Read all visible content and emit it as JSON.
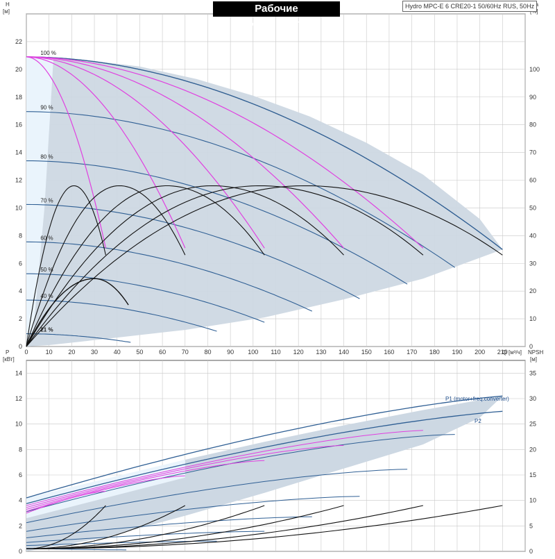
{
  "header": {
    "title": "Рабочие характеристики",
    "subtitle": "Hydro MPC-E 6 CRE20-1 50/60Hz RUS, 50Hz"
  },
  "colors": {
    "envelope": "#cdd8e3",
    "envelope_edge": "#3a5f8a",
    "single_pump_area": "#eaf4fc",
    "speed_curve": "#2f5f94",
    "efficiency_curve": "#111111",
    "duty_curve": "#e040e0",
    "grid": "#c8c8c8"
  },
  "chart_data": [
    {
      "type": "line",
      "name": "head",
      "title": "Рабочие характеристики",
      "xlabel": "Q",
      "xunit": "[м³/ч]",
      "ylabel": "H",
      "yunit": "[м]",
      "y2label": "eta",
      "y2unit": "[%]",
      "xlim": [
        0,
        220
      ],
      "ylim": [
        0,
        24
      ],
      "y2lim": [
        0,
        120
      ],
      "xticks": [
        0,
        10,
        20,
        30,
        40,
        50,
        60,
        70,
        80,
        90,
        100,
        110,
        120,
        130,
        140,
        150,
        160,
        170,
        180,
        190,
        200,
        210
      ],
      "yticks": [
        0,
        2,
        4,
        6,
        8,
        10,
        12,
        14,
        16,
        18,
        20,
        22
      ],
      "y2ticks": [
        0,
        10,
        20,
        30,
        40,
        50,
        60,
        70,
        80,
        90,
        100
      ],
      "grid": true,
      "envelope": {
        "x": [
          0,
          10,
          25,
          50,
          75,
          100,
          125,
          150,
          175,
          200,
          210,
          175,
          140,
          105,
          70,
          35,
          10,
          0
        ],
        "y": [
          20.9,
          20.88,
          20.7,
          20.2,
          19.3,
          18.1,
          16.6,
          14.7,
          12.4,
          9.2,
          7.0,
          4.9,
          3.4,
          2.1,
          1.2,
          0.55,
          0.1,
          0
        ]
      },
      "speed_curves": [
        {
          "label": "100 %",
          "shutoff": 20.9,
          "qmax": 210,
          "hend": 7.0
        },
        {
          "label": "90 %",
          "shutoff": 16.95,
          "qmax": 189,
          "hend": 5.7
        },
        {
          "label": "80 %",
          "shutoff": 13.4,
          "qmax": 168,
          "hend": 4.5
        },
        {
          "label": "70 %",
          "shutoff": 10.25,
          "qmax": 147,
          "hend": 3.45
        },
        {
          "label": "60 %",
          "shutoff": 7.55,
          "qmax": 126,
          "hend": 2.55
        },
        {
          "label": "50 %",
          "shutoff": 5.25,
          "qmax": 105,
          "hend": 1.75
        },
        {
          "label": "40 %",
          "shutoff": 3.35,
          "qmax": 84,
          "hend": 1.1
        },
        {
          "label": "21 %",
          "shutoff": 0.92,
          "qmax": 46,
          "hend": 0.3
        }
      ],
      "duty_curves": [
        {
          "x": [
            0,
            35
          ],
          "y": [
            20.9,
            7.1
          ]
        },
        {
          "x": [
            0,
            70
          ],
          "y": [
            20.9,
            7.1
          ]
        },
        {
          "x": [
            0,
            105
          ],
          "y": [
            20.9,
            7.1
          ]
        },
        {
          "x": [
            0,
            140
          ],
          "y": [
            20.9,
            7.1
          ]
        },
        {
          "x": [
            0,
            175
          ],
          "y": [
            20.9,
            7.1
          ]
        }
      ],
      "efficiency_curves": [
        {
          "peak_x": 30,
          "peak": 24.5,
          "qmax": 45,
          "end": 15
        },
        {
          "peak_x": 21,
          "peak": 58,
          "qmax": 35,
          "end": 33
        },
        {
          "peak_x": 41,
          "peak": 58,
          "qmax": 70,
          "end": 33
        },
        {
          "peak_x": 62,
          "peak": 58,
          "qmax": 105,
          "end": 33
        },
        {
          "peak_x": 82,
          "peak": 58,
          "qmax": 140,
          "end": 33
        },
        {
          "peak_x": 103,
          "peak": 58,
          "qmax": 175,
          "end": 33
        },
        {
          "peak_x": 123,
          "peak": 58,
          "qmax": 210,
          "end": 33
        }
      ]
    },
    {
      "type": "line",
      "name": "power",
      "ylabel": "P",
      "yunit": "[кВт]",
      "y2label": "NPSH",
      "y2unit": "[м]",
      "xlim": [
        0,
        220
      ],
      "ylim": [
        0,
        15
      ],
      "y2lim": [
        0,
        37.5
      ],
      "yticks": [
        0,
        2,
        4,
        6,
        8,
        10,
        12,
        14
      ],
      "y2ticks": [
        0,
        5,
        10,
        15,
        20,
        25,
        30,
        35
      ],
      "grid": true,
      "series": [
        {
          "name": "P1 (motor+freq.converter)",
          "x": [
            0,
            210
          ],
          "start": 4.2,
          "end": 12.2
        },
        {
          "name": "P2",
          "x": [
            0,
            210
          ],
          "start": 3.75,
          "end": 11.0
        }
      ],
      "envelope": {
        "x": [
          0,
          35,
          70,
          105,
          140,
          175,
          210,
          200,
          175,
          140,
          105,
          70,
          35,
          0
        ],
        "y": [
          4.2,
          5.6,
          7.2,
          8.6,
          9.9,
          11.1,
          12.2,
          10.5,
          8.4,
          6.5,
          4.6,
          2.8,
          1.1,
          0
        ]
      },
      "npsh_curves": [
        {
          "x": [
            0,
            35
          ],
          "y": [
            0.5,
            9
          ]
        },
        {
          "x": [
            0,
            70
          ],
          "y": [
            0.5,
            9
          ]
        },
        {
          "x": [
            0,
            105
          ],
          "y": [
            0.5,
            9
          ]
        },
        {
          "x": [
            0,
            140
          ],
          "y": [
            0.5,
            9
          ]
        },
        {
          "x": [
            0,
            175
          ],
          "y": [
            0.5,
            9
          ]
        },
        {
          "x": [
            0,
            210
          ],
          "y": [
            0.5,
            9
          ]
        }
      ]
    }
  ]
}
